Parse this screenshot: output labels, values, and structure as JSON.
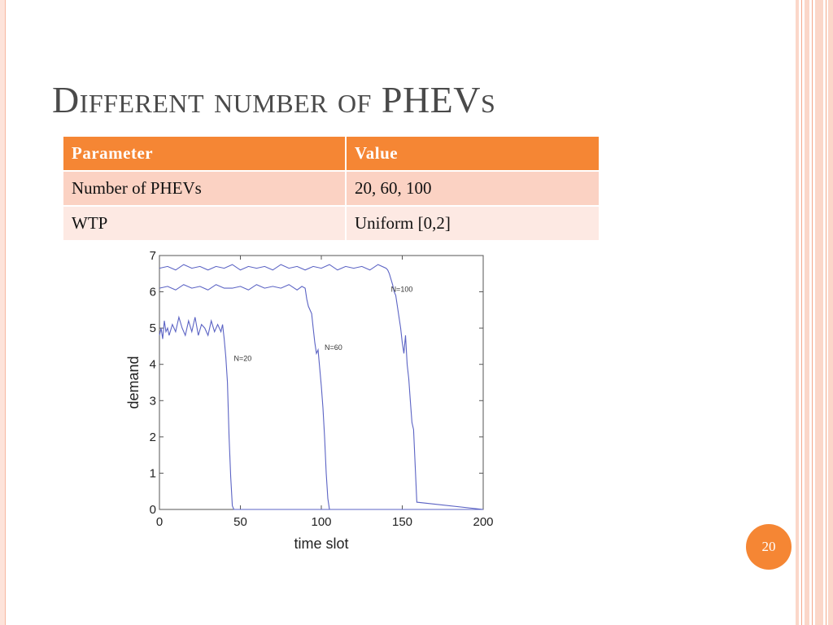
{
  "slide": {
    "title": "Different number of PHEVs",
    "page_number": "20"
  },
  "table": {
    "headers": [
      "Parameter",
      "Value"
    ],
    "rows": [
      [
        "Number of PHEVs",
        "20, 60, 100"
      ],
      [
        "WTP",
        "Uniform [0,2]"
      ]
    ]
  },
  "colors": {
    "accent": "#f58634",
    "row_dark": "#fbd2c3",
    "row_light": "#fde9e3",
    "line": "#5b63c4",
    "title": "#4a4a4a"
  },
  "chart_data": {
    "type": "line",
    "title": "",
    "xlabel": "time slot",
    "ylabel": "demand",
    "xlim": [
      0,
      200
    ],
    "ylim": [
      0,
      7
    ],
    "xticks": [
      "0",
      "50",
      "100",
      "150",
      "200"
    ],
    "yticks": [
      "0",
      "1",
      "2",
      "3",
      "4",
      "5",
      "6",
      "7"
    ],
    "grid": false,
    "series": [
      {
        "name": "N=20",
        "x": [
          0,
          1,
          2,
          3,
          4,
          5,
          6,
          8,
          10,
          12,
          14,
          16,
          18,
          20,
          22,
          24,
          26,
          28,
          30,
          32,
          34,
          36,
          38,
          39,
          40,
          41,
          42,
          43,
          44,
          45,
          46,
          200
        ],
        "y": [
          4.8,
          5.0,
          4.7,
          5.2,
          4.9,
          5.0,
          4.8,
          5.1,
          4.9,
          5.3,
          5.0,
          4.8,
          5.2,
          4.9,
          5.3,
          4.8,
          5.1,
          5.0,
          4.8,
          5.2,
          4.9,
          5.1,
          4.9,
          5.1,
          4.7,
          4.2,
          3.5,
          2.0,
          0.9,
          0.1,
          0,
          0
        ]
      },
      {
        "name": "N=60",
        "x": [
          0,
          5,
          10,
          15,
          20,
          25,
          30,
          35,
          40,
          45,
          50,
          55,
          60,
          65,
          70,
          75,
          80,
          85,
          88,
          90,
          91,
          92,
          93,
          94,
          95,
          96,
          97,
          98,
          99,
          100,
          101,
          102,
          103,
          104,
          105,
          200
        ],
        "y": [
          6.1,
          6.15,
          6.05,
          6.2,
          6.1,
          6.15,
          6.05,
          6.2,
          6.1,
          6.1,
          6.15,
          6.05,
          6.2,
          6.1,
          6.15,
          6.1,
          6.2,
          6.05,
          6.15,
          6.1,
          5.8,
          5.6,
          5.5,
          5.4,
          5.0,
          4.6,
          4.3,
          4.4,
          3.9,
          3.4,
          2.8,
          2.0,
          1.0,
          0.3,
          0,
          0
        ]
      },
      {
        "name": "N=100",
        "x": [
          0,
          5,
          10,
          15,
          20,
          25,
          30,
          35,
          40,
          45,
          50,
          55,
          60,
          65,
          70,
          75,
          80,
          85,
          90,
          95,
          100,
          105,
          110,
          115,
          120,
          125,
          130,
          135,
          140,
          141,
          142,
          143,
          144,
          145,
          146,
          147,
          148,
          149,
          150,
          151,
          152,
          153,
          154,
          155,
          156,
          157,
          158,
          159,
          200
        ],
        "y": [
          6.65,
          6.7,
          6.6,
          6.75,
          6.65,
          6.7,
          6.6,
          6.7,
          6.65,
          6.75,
          6.6,
          6.7,
          6.65,
          6.7,
          6.6,
          6.75,
          6.65,
          6.7,
          6.6,
          6.7,
          6.65,
          6.75,
          6.6,
          6.7,
          6.65,
          6.7,
          6.6,
          6.75,
          6.65,
          6.6,
          6.5,
          6.35,
          6.2,
          6.0,
          5.9,
          5.6,
          5.3,
          5.0,
          4.6,
          4.3,
          4.8,
          4.0,
          3.6,
          3.0,
          2.4,
          2.2,
          1.2,
          0.2,
          0
        ]
      }
    ],
    "annotations": [
      {
        "text": "N=20",
        "x": 46,
        "y": 4.1
      },
      {
        "text": "N=60",
        "x": 102,
        "y": 4.4
      },
      {
        "text": "N=100",
        "x": 143,
        "y": 6.0
      }
    ]
  }
}
